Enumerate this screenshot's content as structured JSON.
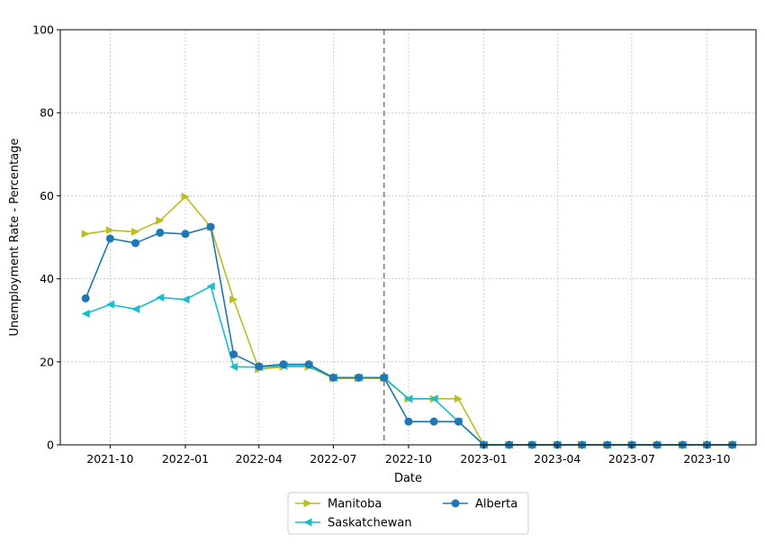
{
  "chart_data": {
    "type": "line",
    "title": "",
    "xlabel": "Date",
    "ylabel": "Unemployment Rate - Percentage",
    "ylim": [
      0,
      100
    ],
    "xlim": [
      "2021-08-01",
      "2023-11-30"
    ],
    "y_ticks": [
      0,
      20,
      40,
      60,
      80,
      100
    ],
    "x_ticks": [
      "2021-10",
      "2022-01",
      "2022-04",
      "2022-07",
      "2022-10",
      "2023-01",
      "2023-04",
      "2023-07",
      "2023-10"
    ],
    "grid": true,
    "legend_placement": "bottom-center",
    "vertical_marker": {
      "x": "2022-09",
      "style": "dashed",
      "color": "#808080"
    },
    "x": [
      "2021-09",
      "2021-10",
      "2021-11",
      "2021-12",
      "2022-01",
      "2022-02",
      "2022-03",
      "2022-04",
      "2022-05",
      "2022-06",
      "2022-07",
      "2022-08",
      "2022-09",
      "2022-10",
      "2022-11",
      "2022-12",
      "2023-01",
      "2023-02",
      "2023-03",
      "2023-04",
      "2023-05",
      "2023-06",
      "2023-07",
      "2023-08",
      "2023-09",
      "2023-10",
      "2023-11"
    ],
    "series": [
      {
        "name": "Manitoba",
        "color": "#bcbd22",
        "marker": "triangle-right",
        "values": [
          50.8,
          51.7,
          51.3,
          54.0,
          59.8,
          52.5,
          35.0,
          18.2,
          18.8,
          18.8,
          16.0,
          16.0,
          16.0,
          11.1,
          11.1,
          11.1,
          0,
          0,
          0,
          0,
          0,
          0,
          0,
          0,
          0,
          0,
          0
        ]
      },
      {
        "name": "Saskatchewan",
        "color": "#17becf",
        "marker": "triangle-left",
        "values": [
          31.6,
          33.8,
          32.7,
          35.5,
          35.0,
          38.2,
          18.8,
          18.7,
          19.0,
          19.0,
          16.2,
          16.2,
          16.2,
          11.1,
          11.1,
          5.6,
          0,
          0,
          0,
          0,
          0,
          0,
          0,
          0,
          0,
          0,
          0
        ]
      },
      {
        "name": "Alberta",
        "color": "#1f77b4",
        "marker": "circle",
        "values": [
          35.3,
          49.7,
          48.6,
          51.1,
          50.8,
          52.5,
          21.8,
          18.9,
          19.4,
          19.4,
          16.2,
          16.2,
          16.2,
          5.6,
          5.6,
          5.6,
          0,
          0,
          0,
          0,
          0,
          0,
          0,
          0,
          0,
          0,
          0
        ]
      }
    ]
  }
}
